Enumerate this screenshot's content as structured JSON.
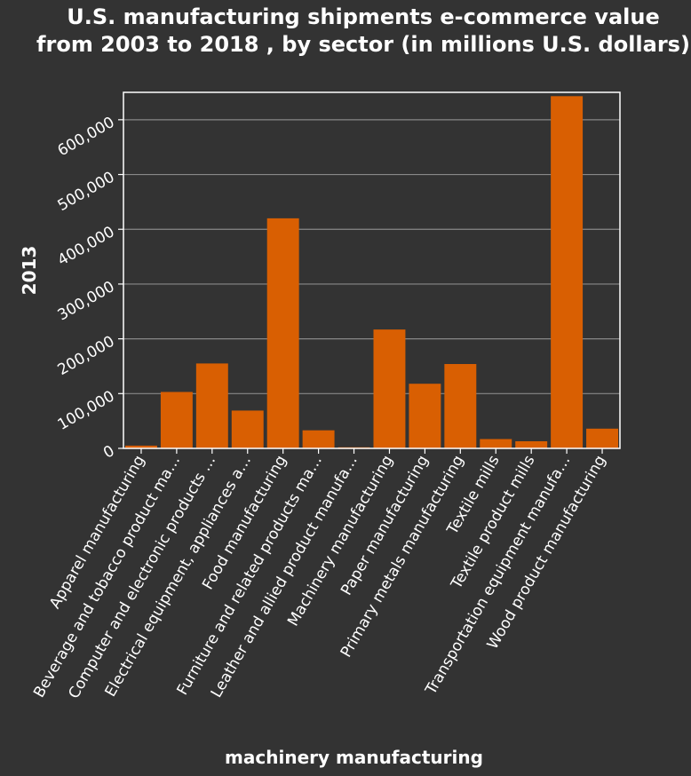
{
  "chart_data": {
    "type": "bar",
    "title": "U.S. manufacturing shipments e-commerce value from 2003 to 2018 , by sector (in millions U.S. dollars)",
    "xlabel": "machinery manufacturing",
    "ylabel": "2013",
    "categories": [
      "Apparel manufacturing",
      "Beverage and tobacco product ma…",
      "Computer and electronic products …",
      "Electrical equipment, appliances a…",
      "Food manufacturing",
      "Furniture and related products ma…",
      "Leather and allied product manufa…",
      "Machinery manufacturing",
      "Paper manufacturing",
      "Primary metals manufacturing",
      "Textile mills",
      "Textile product mills",
      "Transportation equipment manufa…",
      "Wood product manufacturing"
    ],
    "values": [
      5000,
      103000,
      155000,
      69000,
      420000,
      33000,
      2000,
      217000,
      118000,
      154000,
      17000,
      13000,
      643000,
      36000
    ],
    "ylim": [
      0,
      650000
    ],
    "yticks": [
      0,
      100000,
      200000,
      300000,
      400000,
      500000,
      600000
    ],
    "ytick_labels": [
      "0",
      "100,000",
      "200,000",
      "300,000",
      "400,000",
      "500,000",
      "600,000"
    ],
    "grid": true,
    "legend": "none",
    "bar_color": "#d95f02",
    "grid_color": "#888888",
    "background_color": "#333333"
  }
}
